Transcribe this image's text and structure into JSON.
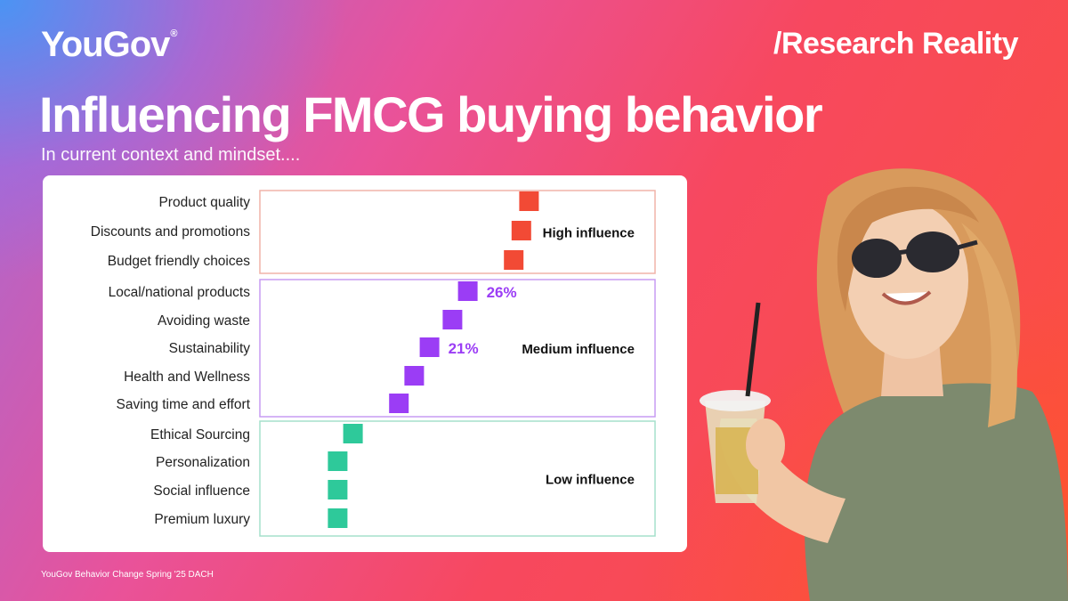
{
  "header": {
    "logo": "YouGov",
    "logo_mark": "®",
    "tag": "/Research Reality",
    "title": "Influencing FMCG buying behavior",
    "subtitle": "In current context and mindset...."
  },
  "footer": {
    "source": "YouGov Behavior Change Spring '25 DACH"
  },
  "chart_data": {
    "type": "scatter",
    "title": "",
    "xlabel": "",
    "ylabel": "",
    "categories": [
      "Product quality",
      "Discounts and promotions",
      "Budget friendly choices",
      "Local/national products",
      "Avoiding waste",
      "Sustainability",
      "Health and Wellness",
      "Saving time and effort",
      "Ethical Sourcing",
      "Personalization",
      "Social influence",
      "Premium luxury"
    ],
    "values": [
      34,
      33,
      32,
      26,
      24,
      21,
      19,
      17,
      11,
      9,
      9,
      9
    ],
    "groups": [
      {
        "label": "High influence",
        "color": "#f24a35",
        "start": 0,
        "end": 2
      },
      {
        "label": "Medium influence",
        "color": "#9b3df5",
        "start": 3,
        "end": 7
      },
      {
        "label": "Low influence",
        "color": "#2ec99a",
        "start": 8,
        "end": 11
      }
    ],
    "data_labels": [
      {
        "index": 3,
        "text": "26%"
      },
      {
        "index": 5,
        "text": "21%"
      }
    ],
    "group_box_colors": {
      "high": "#f0b3a8",
      "medium": "#c79bf2",
      "low": "#a5e0cc"
    }
  }
}
